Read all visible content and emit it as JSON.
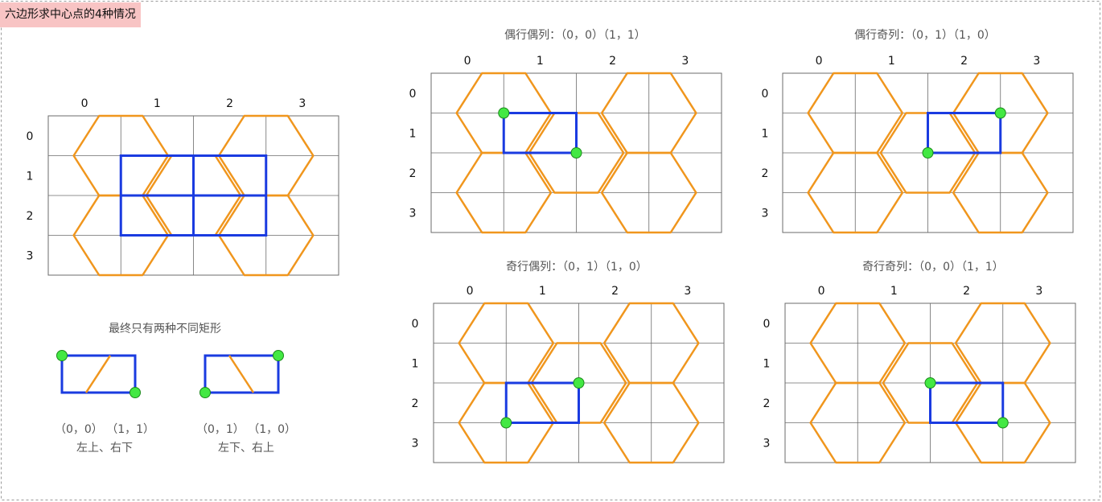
{
  "title": "六边形求中心点的4种情况",
  "colors": {
    "hexagon": "#f0961d",
    "rect": "#1a3be0",
    "point_fill": "#43e843",
    "point_stroke": "#1a8a1a",
    "grid": "#6b6b6b",
    "frame": "#9a9a9a",
    "text": "#111111",
    "caption": "#555555",
    "title_bg": "#f8c4c4"
  },
  "main_diagram": {
    "col_labels": [
      "0",
      "1",
      "2",
      "3"
    ],
    "row_labels": [
      "0",
      "1",
      "2",
      "3"
    ]
  },
  "cases": [
    {
      "id": "even-even",
      "label": "偶行偶列：（0，0）（1，1）",
      "col_labels": [
        "0",
        "1",
        "2",
        "3"
      ],
      "row_labels": [
        "0",
        "1",
        "2",
        "3"
      ]
    },
    {
      "id": "even-odd",
      "label": "偶行奇列：（0，1）（1，0）",
      "col_labels": [
        "0",
        "1",
        "2",
        "3"
      ],
      "row_labels": [
        "0",
        "1",
        "2",
        "3"
      ]
    },
    {
      "id": "odd-even",
      "label": "奇行偶列：（0，1）（1，0）",
      "col_labels": [
        "0",
        "1",
        "2",
        "3"
      ],
      "row_labels": [
        "0",
        "1",
        "2",
        "3"
      ]
    },
    {
      "id": "odd-odd",
      "label": "奇行奇列：（0，0）（1，1）",
      "col_labels": [
        "0",
        "1",
        "2",
        "3"
      ],
      "row_labels": [
        "0",
        "1",
        "2",
        "3"
      ]
    }
  ],
  "summary": {
    "heading": "最终只有两种不同矩形",
    "shapes": [
      {
        "coords": "（0，0） （1，1）",
        "desc": "左上、右下"
      },
      {
        "coords": "（0，1） （1，0）",
        "desc": "左下、右上"
      }
    ]
  }
}
